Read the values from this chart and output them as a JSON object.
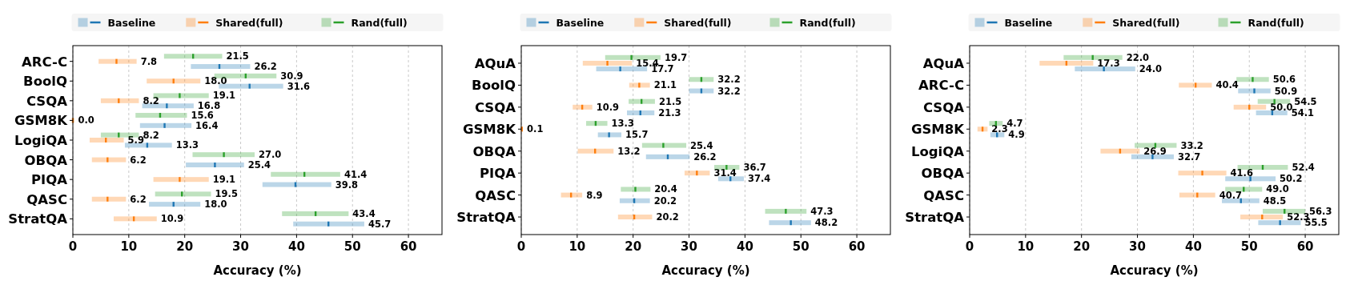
{
  "chart_data": [
    {
      "type": "box",
      "orientation": "horizontal",
      "categories": [
        "ARC-C",
        "BoolQ",
        "CSQA",
        "GSM8K",
        "LogiQA",
        "OBQA",
        "PIQA",
        "QASC",
        "StratQA"
      ],
      "xlabel": "Accuracy (%)",
      "xlim": [
        0,
        66
      ],
      "xticks": [
        0,
        10,
        20,
        30,
        40,
        50,
        60
      ],
      "grid": "x",
      "legend": "top",
      "series": [
        {
          "name": "Baseline",
          "color": "#1f77b4",
          "value_labels": [
            "26.2",
            "31.6",
            "16.8",
            "16.4",
            "13.3",
            "25.4",
            "39.8",
            "18.0",
            "45.7"
          ],
          "boxes": [
            {
              "low": 21.1,
              "q1": 21.1,
              "median": 26.2,
              "q3": 31.7,
              "high": 31.7
            },
            {
              "low": 26.1,
              "q1": 26.1,
              "median": 31.6,
              "q3": 37.6,
              "high": 37.6
            },
            {
              "low": 12.4,
              "q1": 12.4,
              "median": 16.8,
              "q3": 21.6,
              "high": 21.6
            },
            {
              "low": 12.0,
              "q1": 12.0,
              "median": 16.4,
              "q3": 21.2,
              "high": 21.2
            },
            {
              "low": 9.3,
              "q1": 9.3,
              "median": 13.3,
              "q3": 17.7,
              "high": 17.7
            },
            {
              "low": 20.2,
              "q1": 20.2,
              "median": 25.4,
              "q3": 30.6,
              "high": 30.6
            },
            {
              "low": 33.9,
              "q1": 33.9,
              "median": 39.8,
              "q3": 46.2,
              "high": 46.2
            },
            {
              "low": 13.6,
              "q1": 13.6,
              "median": 18.0,
              "q3": 22.8,
              "high": 22.8
            },
            {
              "low": 39.4,
              "q1": 39.4,
              "median": 45.7,
              "q3": 52.1,
              "high": 52.1
            }
          ]
        },
        {
          "name": "Shared(full)",
          "color": "#ff7f0e",
          "value_labels": [
            "7.8",
            "18.0",
            "8.2",
            "0.0",
            "5.9",
            "6.2",
            "19.1",
            "6.2",
            "10.9"
          ],
          "boxes": [
            {
              "low": 4.6,
              "q1": 4.6,
              "median": 7.8,
              "q3": 11.4,
              "high": 11.4
            },
            {
              "low": 13.2,
              "q1": 13.2,
              "median": 18.0,
              "q3": 22.8,
              "high": 22.8
            },
            {
              "low": 5.0,
              "q1": 5.0,
              "median": 8.2,
              "q3": 11.8,
              "high": 11.8
            },
            {
              "low": 0.0,
              "q1": 0.0,
              "median": 0.0,
              "q3": 0.2,
              "high": 0.2
            },
            {
              "low": 3.0,
              "q1": 3.0,
              "median": 5.9,
              "q3": 9.1,
              "high": 9.1
            },
            {
              "low": 3.4,
              "q1": 3.4,
              "median": 6.2,
              "q3": 9.5,
              "high": 9.5
            },
            {
              "low": 14.4,
              "q1": 14.4,
              "median": 19.1,
              "q3": 24.3,
              "high": 24.3
            },
            {
              "low": 3.4,
              "q1": 3.4,
              "median": 6.2,
              "q3": 9.5,
              "high": 9.5
            },
            {
              "low": 7.3,
              "q1": 7.3,
              "median": 10.9,
              "q3": 15.0,
              "high": 15.0
            }
          ]
        },
        {
          "name": "Rand(full)",
          "color": "#2ca02c",
          "value_labels": [
            "21.5",
            "30.9",
            "19.1",
            "15.6",
            "8.2",
            "27.0",
            "41.4",
            "19.5",
            "43.4"
          ],
          "boxes": [
            {
              "low": 16.3,
              "q1": 16.3,
              "median": 21.5,
              "q3": 26.7,
              "high": 26.7
            },
            {
              "low": 25.3,
              "q1": 25.3,
              "median": 30.9,
              "q3": 36.4,
              "high": 36.4
            },
            {
              "low": 14.4,
              "q1": 14.4,
              "median": 19.1,
              "q3": 24.3,
              "high": 24.3
            },
            {
              "low": 11.2,
              "q1": 11.2,
              "median": 15.6,
              "q3": 20.4,
              "high": 20.4
            },
            {
              "low": 5.0,
              "q1": 5.0,
              "median": 8.2,
              "q3": 11.8,
              "high": 11.8
            },
            {
              "low": 21.4,
              "q1": 21.4,
              "median": 27.0,
              "q3": 32.5,
              "high": 32.5
            },
            {
              "low": 35.4,
              "q1": 35.4,
              "median": 41.4,
              "q3": 47.8,
              "high": 47.8
            },
            {
              "low": 14.7,
              "q1": 14.7,
              "median": 19.5,
              "q3": 24.7,
              "high": 24.7
            },
            {
              "low": 37.4,
              "q1": 37.4,
              "median": 43.4,
              "q3": 49.3,
              "high": 49.3
            }
          ]
        }
      ]
    },
    {
      "type": "box",
      "orientation": "horizontal",
      "categories": [
        "AQuA",
        "BoolQ",
        "CSQA",
        "GSM8K",
        "OBQA",
        "PIQA",
        "QASC",
        "StratQA"
      ],
      "xlabel": "Accuracy (%)",
      "xlim": [
        0,
        66
      ],
      "xticks": [
        0,
        10,
        20,
        30,
        40,
        50,
        60
      ],
      "grid": "x",
      "legend": "top",
      "series": [
        {
          "name": "Baseline",
          "color": "#1f77b4",
          "value_labels": [
            "17.7",
            "32.2",
            "21.3",
            "15.7",
            "26.2",
            "37.4",
            "20.2",
            "48.2"
          ],
          "boxes": [
            {
              "low": 13.4,
              "q1": 13.4,
              "median": 17.7,
              "q3": 22.5,
              "high": 22.5
            },
            {
              "low": 30.0,
              "q1": 30.0,
              "median": 32.2,
              "q3": 34.4,
              "high": 34.4
            },
            {
              "low": 18.9,
              "q1": 18.9,
              "median": 21.3,
              "q3": 23.8,
              "high": 23.8
            },
            {
              "low": 13.7,
              "q1": 13.7,
              "median": 15.7,
              "q3": 17.9,
              "high": 17.9
            },
            {
              "low": 22.3,
              "q1": 22.3,
              "median": 26.2,
              "q3": 30.1,
              "high": 30.1
            },
            {
              "low": 35.2,
              "q1": 35.2,
              "median": 37.4,
              "q3": 39.8,
              "high": 39.8
            },
            {
              "low": 17.6,
              "q1": 17.6,
              "median": 20.2,
              "q3": 23.0,
              "high": 23.0
            },
            {
              "low": 44.3,
              "q1": 44.3,
              "median": 48.2,
              "q3": 51.8,
              "high": 51.8
            }
          ]
        },
        {
          "name": "Shared(full)",
          "color": "#ff7f0e",
          "value_labels": [
            "15.4",
            "21.1",
            "10.9",
            "0.1",
            "13.2",
            "31.4",
            "8.9",
            "20.2"
          ],
          "boxes": [
            {
              "low": 11.0,
              "q1": 11.0,
              "median": 15.4,
              "q3": 19.8,
              "high": 19.8
            },
            {
              "low": 19.3,
              "q1": 19.3,
              "median": 21.1,
              "q3": 23.0,
              "high": 23.0
            },
            {
              "low": 9.2,
              "q1": 9.2,
              "median": 10.9,
              "q3": 12.7,
              "high": 12.7
            },
            {
              "low": 0.0,
              "q1": 0.0,
              "median": 0.1,
              "q3": 0.3,
              "high": 0.3
            },
            {
              "low": 10.1,
              "q1": 10.1,
              "median": 13.2,
              "q3": 16.5,
              "high": 16.5
            },
            {
              "low": 29.2,
              "q1": 29.2,
              "median": 31.4,
              "q3": 33.7,
              "high": 33.7
            },
            {
              "low": 7.1,
              "q1": 7.1,
              "median": 8.9,
              "q3": 10.9,
              "high": 10.9
            },
            {
              "low": 17.3,
              "q1": 17.3,
              "median": 20.2,
              "q3": 23.4,
              "high": 23.4
            }
          ]
        },
        {
          "name": "Rand(full)",
          "color": "#2ca02c",
          "value_labels": [
            "19.7",
            "32.2",
            "21.5",
            "13.3",
            "25.4",
            "36.7",
            "20.4",
            "47.3"
          ],
          "boxes": [
            {
              "low": 15.0,
              "q1": 15.0,
              "median": 19.7,
              "q3": 24.9,
              "high": 24.9
            },
            {
              "low": 30.0,
              "q1": 30.0,
              "median": 32.2,
              "q3": 34.4,
              "high": 34.4
            },
            {
              "low": 19.2,
              "q1": 19.2,
              "median": 21.5,
              "q3": 23.9,
              "high": 23.9
            },
            {
              "low": 11.6,
              "q1": 11.6,
              "median": 13.3,
              "q3": 15.4,
              "high": 15.4
            },
            {
              "low": 21.6,
              "q1": 21.6,
              "median": 25.4,
              "q3": 29.5,
              "high": 29.5
            },
            {
              "low": 34.5,
              "q1": 34.5,
              "median": 36.7,
              "q3": 39.0,
              "high": 39.0
            },
            {
              "low": 17.8,
              "q1": 17.8,
              "median": 20.4,
              "q3": 23.1,
              "high": 23.1
            },
            {
              "low": 43.6,
              "q1": 43.6,
              "median": 47.3,
              "q3": 51.0,
              "high": 51.0
            }
          ]
        }
      ]
    },
    {
      "type": "box",
      "orientation": "horizontal",
      "categories": [
        "AQuA",
        "ARC-C",
        "CSQA",
        "GSM8K",
        "LogiQA",
        "OBQA",
        "QASC",
        "StratQA"
      ],
      "xlabel": "Accuracy (%)",
      "xlim": [
        0,
        66
      ],
      "xticks": [
        0,
        10,
        20,
        30,
        40,
        50,
        60
      ],
      "grid": "x",
      "legend": "top",
      "series": [
        {
          "name": "Baseline",
          "color": "#1f77b4",
          "value_labels": [
            "24.0",
            "50.9",
            "54.1",
            "4.9",
            "32.7",
            "50.2",
            "48.5",
            "55.5"
          ],
          "boxes": [
            {
              "low": 18.8,
              "q1": 18.8,
              "median": 24.0,
              "q3": 29.6,
              "high": 29.6
            },
            {
              "low": 48.0,
              "q1": 48.0,
              "median": 50.9,
              "q3": 53.8,
              "high": 53.8
            },
            {
              "low": 51.2,
              "q1": 51.2,
              "median": 54.1,
              "q3": 56.8,
              "high": 56.8
            },
            {
              "low": 3.7,
              "q1": 3.7,
              "median": 4.9,
              "q3": 6.2,
              "high": 6.2
            },
            {
              "low": 28.9,
              "q1": 28.9,
              "median": 32.7,
              "q3": 36.5,
              "high": 36.5
            },
            {
              "low": 45.7,
              "q1": 45.7,
              "median": 50.2,
              "q3": 54.7,
              "high": 54.7
            },
            {
              "low": 45.1,
              "q1": 45.1,
              "median": 48.5,
              "q3": 51.8,
              "high": 51.8
            },
            {
              "low": 51.6,
              "q1": 51.6,
              "median": 55.5,
              "q3": 59.2,
              "high": 59.2
            }
          ]
        },
        {
          "name": "Shared(full)",
          "color": "#ff7f0e",
          "value_labels": [
            "17.3",
            "40.4",
            "50.0",
            "2.3",
            "26.9",
            "41.6",
            "40.7",
            "52.3"
          ],
          "boxes": [
            {
              "low": 12.5,
              "q1": 12.5,
              "median": 17.3,
              "q3": 22.1,
              "high": 22.1
            },
            {
              "low": 37.4,
              "q1": 37.4,
              "median": 40.4,
              "q3": 43.3,
              "high": 43.3
            },
            {
              "low": 47.2,
              "q1": 47.2,
              "median": 50.0,
              "q3": 53.0,
              "high": 53.0
            },
            {
              "low": 1.4,
              "q1": 1.4,
              "median": 2.3,
              "q3": 3.2,
              "high": 3.2
            },
            {
              "low": 23.4,
              "q1": 23.4,
              "median": 26.9,
              "q3": 30.4,
              "high": 30.4
            },
            {
              "low": 37.3,
              "q1": 37.3,
              "median": 41.6,
              "q3": 45.9,
              "high": 45.9
            },
            {
              "low": 37.5,
              "q1": 37.5,
              "median": 40.7,
              "q3": 43.9,
              "high": 43.9
            },
            {
              "low": 48.4,
              "q1": 48.4,
              "median": 52.3,
              "q3": 56.0,
              "high": 56.0
            }
          ]
        },
        {
          "name": "Rand(full)",
          "color": "#2ca02c",
          "value_labels": [
            "22.0",
            "50.6",
            "54.5",
            "4.7",
            "33.2",
            "52.4",
            "49.0",
            "56.3"
          ],
          "boxes": [
            {
              "low": 16.8,
              "q1": 16.8,
              "median": 22.0,
              "q3": 27.3,
              "high": 27.3
            },
            {
              "low": 47.7,
              "q1": 47.7,
              "median": 50.6,
              "q3": 53.5,
              "high": 53.5
            },
            {
              "low": 51.5,
              "q1": 51.5,
              "median": 54.5,
              "q3": 57.3,
              "high": 57.3
            },
            {
              "low": 3.5,
              "q1": 3.5,
              "median": 4.7,
              "q3": 5.9,
              "high": 5.9
            },
            {
              "low": 29.5,
              "q1": 29.5,
              "median": 33.2,
              "q3": 37.0,
              "high": 37.0
            },
            {
              "low": 47.9,
              "q1": 47.9,
              "median": 52.4,
              "q3": 56.9,
              "high": 56.9
            },
            {
              "low": 45.7,
              "q1": 45.7,
              "median": 49.0,
              "q3": 52.3,
              "high": 52.3
            },
            {
              "low": 52.4,
              "q1": 52.4,
              "median": 56.3,
              "q3": 60.0,
              "high": 60.0
            }
          ]
        }
      ]
    }
  ]
}
